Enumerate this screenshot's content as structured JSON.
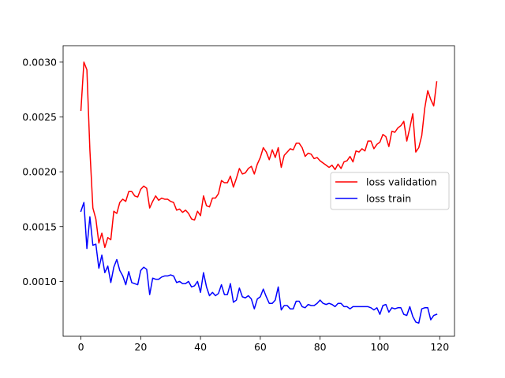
{
  "chart_data": {
    "type": "line",
    "title": "",
    "xlabel": "",
    "ylabel": "",
    "xlim": [
      -5.95,
      124.95
    ],
    "ylim": [
      0.0005,
      0.00315
    ],
    "xticks": [
      0,
      20,
      40,
      60,
      80,
      100,
      120
    ],
    "xtick_labels": [
      "0",
      "20",
      "40",
      "60",
      "80",
      "100",
      "120"
    ],
    "yticks": [
      0.001,
      0.0015,
      0.002,
      0.0025,
      0.003
    ],
    "ytick_labels": [
      "0.0010",
      "0.0015",
      "0.0020",
      "0.0025",
      "0.0030"
    ],
    "grid": false,
    "legend_position": "center-right",
    "series": [
      {
        "name": "loss validation",
        "color": "#ff0000",
        "values": [
          0.00256,
          0.003,
          0.00293,
          0.0022,
          0.00167,
          0.00157,
          0.00135,
          0.00144,
          0.00131,
          0.0014,
          0.00138,
          0.00164,
          0.00162,
          0.00172,
          0.00175,
          0.00173,
          0.00182,
          0.00182,
          0.00178,
          0.00177,
          0.00184,
          0.00187,
          0.00185,
          0.00167,
          0.00173,
          0.00178,
          0.00174,
          0.00176,
          0.00175,
          0.00175,
          0.00173,
          0.00172,
          0.00165,
          0.00166,
          0.00163,
          0.00165,
          0.00162,
          0.00157,
          0.00156,
          0.00164,
          0.0016,
          0.00178,
          0.00169,
          0.00168,
          0.00176,
          0.00176,
          0.0018,
          0.00192,
          0.0019,
          0.0019,
          0.00196,
          0.00186,
          0.00194,
          0.00203,
          0.00198,
          0.00199,
          0.00203,
          0.00205,
          0.00198,
          0.00207,
          0.00213,
          0.00222,
          0.00218,
          0.00211,
          0.0022,
          0.00213,
          0.00222,
          0.00204,
          0.00215,
          0.00218,
          0.00221,
          0.0022,
          0.00226,
          0.00226,
          0.00222,
          0.00214,
          0.00217,
          0.00216,
          0.00212,
          0.00213,
          0.0021,
          0.00208,
          0.00206,
          0.00204,
          0.00206,
          0.00202,
          0.00207,
          0.00203,
          0.00209,
          0.0021,
          0.00214,
          0.00209,
          0.00219,
          0.00218,
          0.00221,
          0.00219,
          0.00228,
          0.00228,
          0.00221,
          0.00225,
          0.00227,
          0.00234,
          0.00232,
          0.00223,
          0.00237,
          0.00236,
          0.0024,
          0.00242,
          0.00246,
          0.00228,
          0.0024,
          0.00253,
          0.00218,
          0.00222,
          0.00233,
          0.00258,
          0.00274,
          0.00266,
          0.0026,
          0.00282
        ]
      },
      {
        "name": "loss train",
        "color": "#0000ff",
        "values": [
          0.00164,
          0.00172,
          0.0013,
          0.00159,
          0.00133,
          0.00134,
          0.00112,
          0.00124,
          0.00108,
          0.00114,
          0.00099,
          0.00113,
          0.0012,
          0.0011,
          0.00105,
          0.00097,
          0.00109,
          0.00099,
          0.00098,
          0.00097,
          0.0011,
          0.00113,
          0.00111,
          0.00088,
          0.00103,
          0.00102,
          0.00102,
          0.00104,
          0.00105,
          0.00105,
          0.00106,
          0.00105,
          0.00099,
          0.001,
          0.00098,
          0.00098,
          0.001,
          0.00095,
          0.00096,
          0.001,
          0.0009,
          0.00108,
          0.00095,
          0.00087,
          0.0009,
          0.00087,
          0.00089,
          0.00097,
          0.00088,
          0.00088,
          0.00098,
          0.00081,
          0.00083,
          0.00094,
          0.00086,
          0.00085,
          0.00087,
          0.00084,
          0.00075,
          0.00084,
          0.00086,
          0.00093,
          0.00086,
          0.0008,
          0.0008,
          0.00083,
          0.00095,
          0.00074,
          0.00078,
          0.00078,
          0.00075,
          0.00075,
          0.00082,
          0.00082,
          0.00077,
          0.00076,
          0.00079,
          0.00078,
          0.00078,
          0.0008,
          0.00083,
          0.0008,
          0.00079,
          0.0008,
          0.00079,
          0.00077,
          0.0008,
          0.0008,
          0.00077,
          0.00077,
          0.00075,
          0.00077,
          0.00077,
          0.00077,
          0.00077,
          0.00077,
          0.00077,
          0.00076,
          0.00074,
          0.00076,
          0.0007,
          0.00078,
          0.00079,
          0.00072,
          0.00076,
          0.00075,
          0.00076,
          0.00076,
          0.0007,
          0.00069,
          0.00077,
          0.00068,
          0.00063,
          0.00062,
          0.00075,
          0.00076,
          0.00076,
          0.00065,
          0.00069,
          0.0007
        ]
      }
    ]
  }
}
